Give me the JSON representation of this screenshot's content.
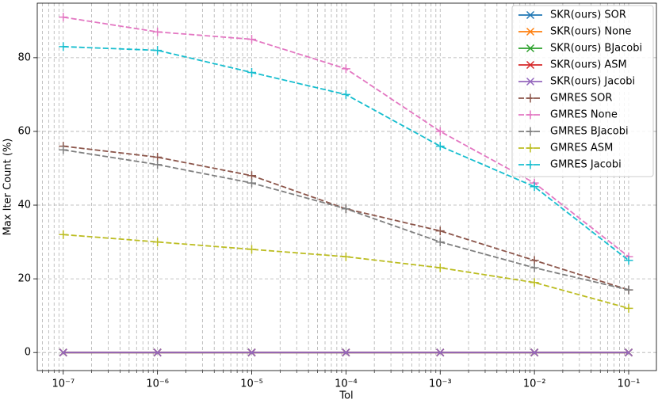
{
  "chart_data": {
    "type": "line",
    "xlabel": "Tol",
    "ylabel": "Max Iter Count (%)",
    "xscale": "log",
    "grid": true,
    "legend": "upper right",
    "x": [
      1e-07,
      1e-06,
      1e-05,
      0.0001,
      0.001,
      0.01,
      0.1
    ],
    "xlim": [
      5.3e-08,
      0.197
    ],
    "xticks": [
      {
        "value": 1e-07,
        "label": "10⁻⁷"
      },
      {
        "value": 1e-06,
        "label": "10⁻⁶"
      },
      {
        "value": 1e-05,
        "label": "10⁻⁵"
      },
      {
        "value": 0.0001,
        "label": "10⁻⁴"
      },
      {
        "value": 0.001,
        "label": "10⁻³"
      },
      {
        "value": 0.01,
        "label": "10⁻²"
      },
      {
        "value": 0.1,
        "label": "10⁻¹"
      }
    ],
    "xminorticks": [
      6e-08,
      7e-08,
      8e-08,
      9e-08,
      2e-07,
      3e-07,
      4e-07,
      5e-07,
      6e-07,
      7e-07,
      8e-07,
      9e-07,
      2e-06,
      3e-06,
      4e-06,
      5e-06,
      6e-06,
      7e-06,
      8e-06,
      9e-06,
      2e-05,
      3e-05,
      4e-05,
      5e-05,
      6e-05,
      7e-05,
      8e-05,
      9e-05,
      0.0002,
      0.0003,
      0.0004,
      0.0005,
      0.0006,
      0.0007,
      0.0008,
      0.0009,
      0.002,
      0.003,
      0.004,
      0.005,
      0.006,
      0.007,
      0.008,
      0.009,
      0.02,
      0.03,
      0.04,
      0.05,
      0.06,
      0.07,
      0.08,
      0.09
    ],
    "ylim": [
      -4.9,
      94.8
    ],
    "yticks": [
      0,
      20,
      40,
      60,
      80
    ],
    "series": [
      {
        "name": "SKR(ours) SOR",
        "color": "#1f77b4",
        "linestyle": "solid",
        "marker": "x",
        "values": [
          0,
          0,
          0,
          0,
          0,
          0,
          0
        ]
      },
      {
        "name": "SKR(ours) None",
        "color": "#ff7f0e",
        "linestyle": "solid",
        "marker": "x",
        "values": [
          0,
          0,
          0,
          0,
          0,
          0,
          0
        ]
      },
      {
        "name": "SKR(ours) BJacobi",
        "color": "#2ca02c",
        "linestyle": "solid",
        "marker": "x",
        "values": [
          0,
          0,
          0,
          0,
          0,
          0,
          0
        ]
      },
      {
        "name": "SKR(ours) ASM",
        "color": "#d62728",
        "linestyle": "solid",
        "marker": "x",
        "values": [
          0,
          0,
          0,
          0,
          0,
          0,
          0
        ]
      },
      {
        "name": "SKR(ours) Jacobi",
        "color": "#9467bd",
        "linestyle": "solid",
        "marker": "x",
        "values": [
          0,
          0,
          0,
          0,
          0,
          0,
          0
        ]
      },
      {
        "name": "GMRES SOR",
        "color": "#8c564b",
        "linestyle": "dashed",
        "marker": "+",
        "values": [
          56,
          53,
          48,
          39,
          33,
          25,
          17
        ]
      },
      {
        "name": "GMRES None",
        "color": "#e377c2",
        "linestyle": "dashed",
        "marker": "+",
        "values": [
          91,
          87,
          85,
          77,
          60,
          46,
          26
        ]
      },
      {
        "name": "GMRES BJacobi",
        "color": "#7f7f7f",
        "linestyle": "dashed",
        "marker": "+",
        "values": [
          55,
          51,
          46,
          39,
          30,
          23,
          17
        ]
      },
      {
        "name": "GMRES ASM",
        "color": "#bcbd22",
        "linestyle": "dashed",
        "marker": "+",
        "values": [
          32,
          30,
          28,
          26,
          23,
          19,
          12
        ]
      },
      {
        "name": "GMRES Jacobi",
        "color": "#17becf",
        "linestyle": "dashed",
        "marker": "+",
        "values": [
          83,
          82,
          76,
          70,
          56,
          45,
          25
        ]
      }
    ]
  }
}
